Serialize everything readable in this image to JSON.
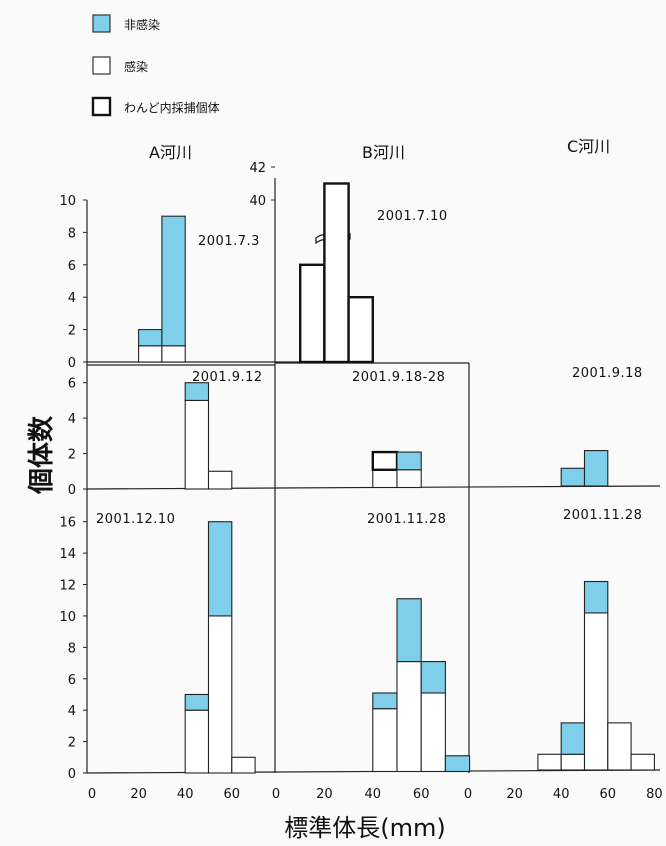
{
  "legend": [
    {
      "label": "非感染",
      "fill": "#7fcfea",
      "stroke": "#333333"
    },
    {
      "label": "感染",
      "fill": "#ffffff",
      "stroke": "#333333"
    },
    {
      "label": "わんど内採捕個体",
      "fill": "#ffffff",
      "stroke": "#111111"
    }
  ],
  "column_titles": [
    "A河川",
    "B河川",
    "C河川"
  ],
  "ylabel": "個体数",
  "xlabel": "標準体長(mm)",
  "x_tick_labels": [
    [
      "0",
      "20",
      "40",
      "60"
    ],
    [
      "0",
      "20",
      "40",
      "60"
    ],
    [
      "0",
      "20",
      "40",
      "60",
      "80"
    ]
  ],
  "colors": {
    "uninfected": "#7fcfea",
    "infected": "#ffffff",
    "outline": "#222222"
  },
  "chart_data": [
    {
      "type": "bar",
      "river": "A河川",
      "row": 0,
      "date": "2001.7.3",
      "ylim": [
        0,
        10
      ],
      "yticks": [
        0,
        2,
        4,
        6,
        8,
        10
      ],
      "xlim": [
        0,
        70
      ],
      "bins": [
        {
          "x0": 20,
          "x1": 30,
          "infected": 1,
          "uninfected": 1
        },
        {
          "x0": 30,
          "x1": 40,
          "infected": 1,
          "uninfected": 8
        }
      ]
    },
    {
      "type": "bar",
      "river": "B河川",
      "row": 0,
      "date": "2001.7.10",
      "ylim": [
        0,
        10
      ],
      "yticks": [
        40,
        42
      ],
      "axis_break": true,
      "xlim": [
        0,
        80
      ],
      "bins": [
        {
          "x0": 10,
          "x1": 20,
          "wando": 6
        },
        {
          "x0": 20,
          "x1": 30,
          "wando": 41
        },
        {
          "x0": 30,
          "x1": 40,
          "wando": 4
        }
      ]
    },
    {
      "type": "bar",
      "river": "A河川",
      "row": 1,
      "date": "2001.9.12",
      "ylim": [
        0,
        7
      ],
      "yticks": [
        0,
        2,
        4,
        6
      ],
      "xlim": [
        0,
        70
      ],
      "bins": [
        {
          "x0": 40,
          "x1": 50,
          "infected": 5,
          "uninfected": 1
        },
        {
          "x0": 50,
          "x1": 60,
          "infected": 1,
          "uninfected": 0
        }
      ]
    },
    {
      "type": "bar",
      "river": "B河川",
      "row": 1,
      "date": "2001.9.18-28",
      "ylim": [
        0,
        7
      ],
      "xlim": [
        0,
        80
      ],
      "bins": [
        {
          "x0": 40,
          "x1": 50,
          "infected": 1,
          "uninfected": 0,
          "wando": 1
        },
        {
          "x0": 50,
          "x1": 60,
          "infected": 1,
          "uninfected": 1
        }
      ]
    },
    {
      "type": "bar",
      "river": "C河川",
      "row": 1,
      "date": "2001.9.18",
      "ylim": [
        0,
        7
      ],
      "xlim": [
        0,
        80
      ],
      "bins": [
        {
          "x0": 40,
          "x1": 50,
          "infected": 0,
          "uninfected": 1
        },
        {
          "x0": 50,
          "x1": 60,
          "infected": 0,
          "uninfected": 2
        }
      ]
    },
    {
      "type": "bar",
      "river": "A河川",
      "row": 2,
      "date": "2001.12.10",
      "ylim": [
        0,
        17
      ],
      "yticks": [
        0,
        2,
        4,
        6,
        8,
        10,
        12,
        14,
        16
      ],
      "xlim": [
        0,
        70
      ],
      "bins": [
        {
          "x0": 40,
          "x1": 50,
          "infected": 4,
          "uninfected": 1
        },
        {
          "x0": 50,
          "x1": 60,
          "infected": 10,
          "uninfected": 6
        },
        {
          "x0": 60,
          "x1": 70,
          "infected": 1,
          "uninfected": 0
        }
      ]
    },
    {
      "type": "bar",
      "river": "B河川",
      "row": 2,
      "date": "2001.11.28",
      "ylim": [
        0,
        17
      ],
      "xlim": [
        0,
        80
      ],
      "bins": [
        {
          "x0": 40,
          "x1": 50,
          "infected": 4,
          "uninfected": 1
        },
        {
          "x0": 50,
          "x1": 60,
          "infected": 7,
          "uninfected": 4
        },
        {
          "x0": 60,
          "x1": 70,
          "infected": 5,
          "uninfected": 2
        },
        {
          "x0": 70,
          "x1": 80,
          "infected": 0,
          "uninfected": 1
        }
      ]
    },
    {
      "type": "bar",
      "river": "C河川",
      "row": 2,
      "date": "2001.11.28",
      "ylim": [
        0,
        17
      ],
      "xlim": [
        0,
        80
      ],
      "bins": [
        {
          "x0": 30,
          "x1": 40,
          "infected": 1,
          "uninfected": 0
        },
        {
          "x0": 40,
          "x1": 50,
          "infected": 1,
          "uninfected": 2
        },
        {
          "x0": 50,
          "x1": 60,
          "infected": 10,
          "uninfected": 2
        },
        {
          "x0": 60,
          "x1": 70,
          "infected": 3,
          "uninfected": 0
        },
        {
          "x0": 70,
          "x1": 80,
          "infected": 1,
          "uninfected": 0
        }
      ]
    }
  ]
}
